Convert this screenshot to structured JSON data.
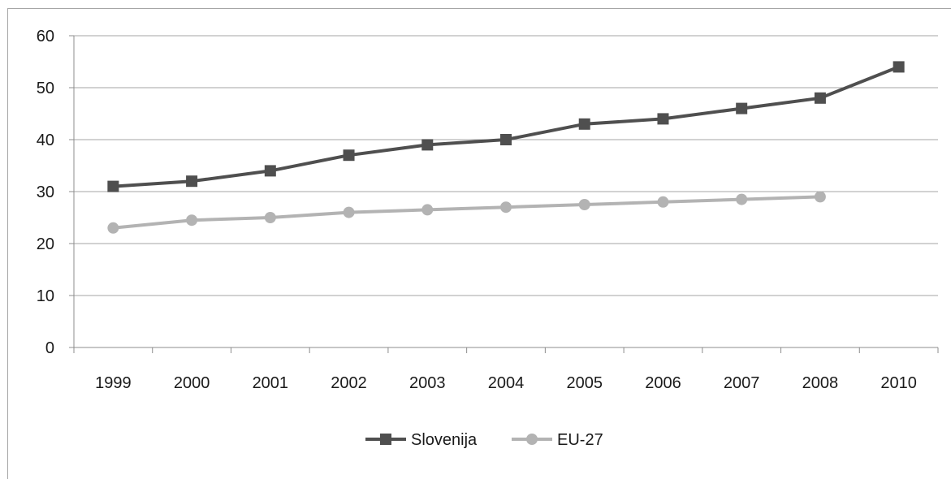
{
  "chart_data": {
    "type": "line",
    "title": "",
    "xlabel": "",
    "ylabel": "",
    "categories": [
      "1999",
      "2000",
      "2001",
      "2002",
      "2003",
      "2004",
      "2005",
      "2006",
      "2007",
      "2008",
      "2010"
    ],
    "ylim": [
      0,
      60
    ],
    "yticks": [
      "0",
      "10",
      "20",
      "30",
      "40",
      "50",
      "60"
    ],
    "grid": "horizontal",
    "legend_position": "bottom",
    "series": [
      {
        "name": "Slovenija",
        "color": "#4f4f4f",
        "marker": "square",
        "values": [
          31,
          32,
          34,
          37,
          39,
          40,
          43,
          44,
          46,
          48,
          54
        ]
      },
      {
        "name": "EU-27",
        "color": "#b3b3b3",
        "marker": "circle",
        "values": [
          23,
          24.5,
          25,
          26,
          26.5,
          27,
          27.5,
          28,
          28.5,
          29,
          null
        ]
      }
    ]
  }
}
